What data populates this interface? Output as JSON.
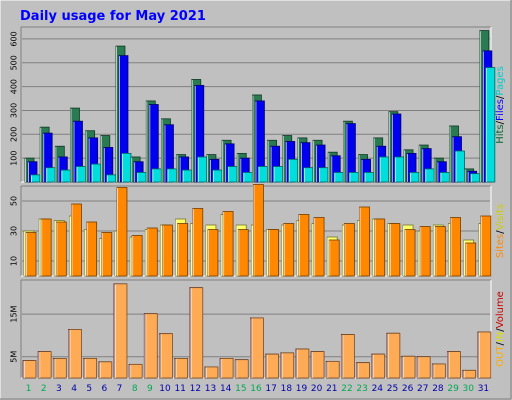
{
  "chart_data": {
    "type": "bar",
    "title": "Daily usage for May 2021",
    "days": [
      "1",
      "2",
      "3",
      "4",
      "5",
      "6",
      "7",
      "8",
      "9",
      "10",
      "11",
      "12",
      "13",
      "14",
      "15",
      "16",
      "17",
      "18",
      "19",
      "20",
      "21",
      "22",
      "23",
      "24",
      "25",
      "26",
      "27",
      "28",
      "29",
      "30",
      "31"
    ],
    "weekend_days": [
      "1",
      "2",
      "8",
      "9",
      "15",
      "16",
      "22",
      "23",
      "29",
      "30"
    ],
    "panels": [
      {
        "id": "hits",
        "ylim": [
          0,
          650
        ],
        "ticks": [
          "100",
          "200",
          "300",
          "400",
          "500",
          "600"
        ],
        "tick_values": [
          100,
          200,
          300,
          400,
          500,
          600
        ],
        "legend": [
          {
            "text": "Hits",
            "color": "#006633"
          },
          {
            "text": "Files",
            "color": "#0000ff"
          },
          {
            "text": "Pages",
            "color": "#00cccc"
          }
        ],
        "series": [
          {
            "name": "Hits",
            "color": "#2a7a52",
            "values": [
              100,
              230,
              150,
              310,
              215,
              195,
              570,
              105,
              340,
              265,
              115,
              430,
              115,
              175,
              120,
              365,
              175,
              195,
              185,
              175,
              125,
              255,
              115,
              185,
              295,
              135,
              155,
              100,
              235,
              55,
              635
            ]
          },
          {
            "name": "Files",
            "color": "#0000ee",
            "values": [
              85,
              205,
              105,
              255,
              185,
              145,
              530,
              85,
              325,
              240,
              105,
              405,
              95,
              160,
              100,
              340,
              150,
              170,
              165,
              155,
              110,
              245,
              95,
              150,
              285,
              120,
              140,
              85,
              190,
              45,
              550
            ]
          },
          {
            "name": "Pages",
            "color": "#00dddd",
            "values": [
              30,
              60,
              50,
              65,
              75,
              30,
              120,
              40,
              55,
              55,
              50,
              105,
              50,
              65,
              40,
              65,
              65,
              95,
              60,
              60,
              40,
              40,
              40,
              105,
              105,
              40,
              55,
              40,
              130,
              35,
              480
            ]
          }
        ]
      },
      {
        "id": "visits",
        "ylim": [
          0,
          60
        ],
        "ticks": [
          "10",
          "30",
          "50"
        ],
        "tick_values": [
          10,
          30,
          50
        ],
        "legend": [
          {
            "text": "Sites",
            "color": "#ff8800"
          },
          {
            "text": "Visits",
            "color": "#cccc00"
          }
        ],
        "series": [
          {
            "name": "Visits",
            "color": "#ffff66",
            "values": [
              30,
              38,
              37,
              40,
              31,
              25,
              30,
              26,
              31,
              34,
              38,
              35,
              34,
              41,
              34,
              34,
              31,
              34,
              37,
              35,
              26,
              34,
              37,
              38,
              35,
              34,
              30,
              34,
              35,
              24,
              35
            ]
          },
          {
            "name": "Sites",
            "color": "#ff8800",
            "values": [
              29,
              38,
              36,
              48,
              36,
              29,
              59,
              27,
              32,
              34,
              35,
              45,
              31,
              43,
              31,
              61,
              31,
              35,
              41,
              39,
              24,
              35,
              46,
              38,
              35,
              31,
              33,
              33,
              39,
              22,
              40
            ]
          }
        ]
      },
      {
        "id": "volume",
        "ylim": [
          0,
          23
        ],
        "ticks": [
          "5M",
          "15M"
        ],
        "tick_values": [
          5,
          15
        ],
        "legend": [
          {
            "text": "OUT",
            "color": "#ffaa00"
          },
          {
            "text": "IN",
            "color": "#dddd00"
          },
          {
            "text": "Volume",
            "color": "#cc0000"
          }
        ],
        "series": [
          {
            "name": "Volume",
            "color": "#dd3333",
            "values": [
              4.1,
              6.2,
              4.6,
              11.4,
              4.6,
              3.8,
              22.1,
              3.2,
              15.1,
              10.4,
              4.6,
              21.2,
              2.6,
              4.6,
              4.3,
              14.1,
              5.6,
              5.9,
              6.8,
              6.2,
              3.9,
              10.2,
              3.6,
              5.6,
              10.5,
              5.1,
              5.0,
              3.3,
              6.2,
              1.8,
              10.8
            ]
          },
          {
            "name": "OUT",
            "color": "#ffaa55",
            "values": [
              4.1,
              6.2,
              4.6,
              11.4,
              4.6,
              3.8,
              22.1,
              3.2,
              15.1,
              10.4,
              4.6,
              21.2,
              2.6,
              4.6,
              4.3,
              14.1,
              5.6,
              5.9,
              6.8,
              6.2,
              3.9,
              10.2,
              3.6,
              5.6,
              10.5,
              5.1,
              5.0,
              3.3,
              6.2,
              1.8,
              10.8
            ]
          }
        ]
      }
    ]
  },
  "colors": {
    "background": "#c0c0c0",
    "plot_background": "#c0c0c0",
    "title": "#0000ff",
    "grid": "#808080",
    "weekday_label": "#0000aa",
    "weekend_label": "#00aa55"
  }
}
